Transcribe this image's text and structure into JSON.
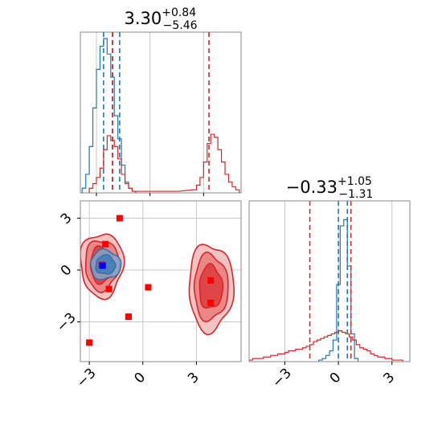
{
  "chart_data": {
    "type": "corner",
    "colors": {
      "red": "#d62728",
      "blue": "#1f77b4",
      "grid": "#c8c8c8",
      "frame": "#888888",
      "marker_blue": "#0000ff",
      "marker_red": "#ff0000"
    },
    "grid": true,
    "panels": [
      {
        "id": "marginal-x",
        "type": "histogram",
        "title": {
          "value": "3.30",
          "sup": "+0.84",
          "sub": "−5.46"
        },
        "xlim": [
          -3.9,
          5.1
        ],
        "series": [
          {
            "name": "",
            "color": "#1f77b4",
            "centers": [
              -3.7,
              -3.5,
              -3.3,
              -3.1,
              -2.9,
              -2.7,
              -2.5,
              -2.3,
              -2.1,
              -1.9,
              -1.7,
              -1.5,
              -1.3,
              -1.1,
              -0.9
            ],
            "heights": [
              0.03,
              0.12,
              0.3,
              0.55,
              0.8,
              0.95,
              1.0,
              0.9,
              0.75,
              0.5,
              0.35,
              0.18,
              0.07,
              0.03,
              0.01
            ],
            "lines": [
              -2.6,
              -2.1,
              -1.7
            ]
          },
          {
            "name": "",
            "color": "#d62728",
            "centers": [
              -3.3,
              -3.1,
              -2.9,
              -2.7,
              -2.5,
              -2.3,
              -2.1,
              -1.9,
              -1.7,
              -1.5,
              -1.3,
              -1.1,
              -0.9,
              -0.5,
              0.0,
              0.5,
              1.5,
              2.5,
              2.7,
              2.9,
              3.1,
              3.3,
              3.5,
              3.7,
              3.9,
              4.1,
              4.3,
              4.5,
              4.7,
              4.9
            ],
            "heights": [
              0.03,
              0.06,
              0.1,
              0.16,
              0.28,
              0.37,
              0.34,
              0.3,
              0.22,
              0.12,
              0.06,
              0.03,
              0.01,
              0.01,
              0.01,
              0.01,
              0.01,
              0.02,
              0.05,
              0.1,
              0.2,
              0.32,
              0.38,
              0.36,
              0.28,
              0.2,
              0.12,
              0.07,
              0.04,
              0.02
            ],
            "lines": [
              -2.1,
              3.3
            ]
          }
        ]
      },
      {
        "id": "joint",
        "type": "scatter_contour",
        "xlim": [
          -3.5,
          5.5
        ],
        "ylim": [
          -5.3,
          4.0
        ],
        "x_ticks": [
          -3,
          0,
          3
        ],
        "y_ticks": [
          -3,
          0,
          3
        ],
        "x_tick_labels": [
          "−3",
          "0",
          "3"
        ],
        "y_tick_labels": [
          "−3",
          "0",
          "3"
        ],
        "red_contours": [
          {
            "center": [
              -2.3,
              0.3
            ],
            "radii": [
              [
                1.2,
                1.85
              ],
              [
                0.95,
                1.45
              ],
              [
                0.65,
                1.05
              ]
            ]
          },
          {
            "center": [
              3.8,
              -1.0
            ],
            "radii": [
              [
                1.25,
                2.5
              ],
              [
                0.95,
                1.9
              ],
              [
                0.65,
                1.25
              ]
            ]
          }
        ],
        "blue_contours": [
          {
            "center": [
              -2.1,
              0.3
            ],
            "radii": [
              [
                0.85,
                0.85
              ],
              [
                0.55,
                0.55
              ]
            ]
          }
        ],
        "red_markers": [
          [
            -1.3,
            3.0
          ],
          [
            -2.1,
            1.5
          ],
          [
            -2.3,
            0.3
          ],
          [
            -1.9,
            -1.1
          ],
          [
            0.3,
            -1.0
          ],
          [
            -3.0,
            -4.2
          ],
          [
            -0.8,
            -2.7
          ],
          [
            3.8,
            -0.6
          ],
          [
            3.8,
            -1.9
          ]
        ],
        "blue_markers": [
          [
            -2.25,
            0.25
          ]
        ]
      },
      {
        "id": "marginal-y",
        "type": "histogram",
        "title": {
          "value": "−0.33",
          "sup": "+1.05",
          "sub": "−1.31"
        },
        "xlim": [
          -5.0,
          4.0
        ],
        "x_ticks": [
          -3,
          0,
          3
        ],
        "x_tick_labels": [
          "−3",
          "0",
          "3"
        ],
        "series": [
          {
            "name": "",
            "color": "#1f77b4",
            "centers": [
              -1.0,
              -0.8,
              -0.6,
              -0.4,
              -0.2,
              0.0,
              0.2,
              0.4,
              0.6,
              0.8,
              1.0
            ],
            "heights": [
              0.01,
              0.02,
              0.04,
              0.07,
              0.14,
              0.5,
              0.88,
              0.92,
              0.62,
              0.18,
              0.02
            ],
            "lines": [
              0.0,
              0.5
            ]
          },
          {
            "name": "",
            "color": "#d62728",
            "centers": [
              -4.9,
              -4.7,
              -4.5,
              -4.3,
              -4.1,
              -3.9,
              -3.7,
              -3.5,
              -3.3,
              -3.1,
              -2.9,
              -2.7,
              -2.5,
              -2.3,
              -2.1,
              -1.9,
              -1.7,
              -1.5,
              -1.3,
              -1.1,
              -0.9,
              -0.7,
              -0.5,
              -0.3,
              -0.1,
              0.1,
              0.3,
              0.5,
              0.7,
              0.9,
              1.1,
              1.3,
              1.5,
              1.7,
              1.9,
              2.1,
              2.3,
              2.5,
              2.7,
              2.9,
              3.1,
              3.3,
              3.5
            ],
            "heights": [
              0.01,
              0.02,
              0.02,
              0.02,
              0.03,
              0.03,
              0.04,
              0.04,
              0.05,
              0.05,
              0.06,
              0.07,
              0.07,
              0.08,
              0.08,
              0.09,
              0.1,
              0.11,
              0.13,
              0.14,
              0.15,
              0.16,
              0.17,
              0.18,
              0.19,
              0.2,
              0.19,
              0.18,
              0.16,
              0.14,
              0.11,
              0.09,
              0.08,
              0.07,
              0.05,
              0.04,
              0.03,
              0.03,
              0.02,
              0.02,
              0.01,
              0.01,
              0.01
            ],
            "lines": [
              -1.6,
              0.7
            ]
          }
        ]
      }
    ]
  }
}
